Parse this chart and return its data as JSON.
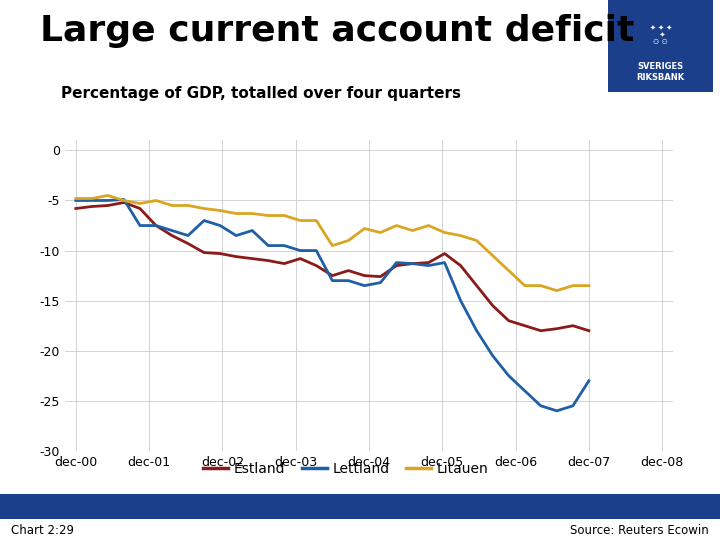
{
  "title": "Large current account deficit",
  "subtitle": "Percentage of GDP, totalled over four quarters",
  "footer_left": "Chart 2:29",
  "footer_right": "Source: Reuters Ecowin",
  "background_color": "#ffffff",
  "plot_bg_color": "#ffffff",
  "grid_color": "#cccccc",
  "ylim": [
    -30,
    1
  ],
  "yticks": [
    0,
    -5,
    -10,
    -15,
    -20,
    -25,
    -30
  ],
  "xtick_labels": [
    "dec-00",
    "dec-01",
    "dec-02",
    "dec-03",
    "dec-04",
    "dec-05",
    "dec-06",
    "dec-07",
    "dec-08"
  ],
  "estland": [
    -5.8,
    -5.6,
    -5.5,
    -5.2,
    -5.8,
    -7.5,
    -8.5,
    -9.3,
    -10.2,
    -10.3,
    -10.6,
    -10.8,
    -11.0,
    -11.3,
    -10.8,
    -11.5,
    -12.5,
    -12.0,
    -12.5,
    -12.6,
    -11.5,
    -11.3,
    -11.2,
    -10.3,
    -11.5,
    -13.5,
    -15.5,
    -17.0,
    -17.5,
    -18.0,
    -17.8,
    -17.5,
    -18.0
  ],
  "lettland": [
    -5.0,
    -5.0,
    -5.0,
    -4.9,
    -7.5,
    -7.5,
    -8.0,
    -8.5,
    -7.0,
    -7.5,
    -8.5,
    -8.0,
    -9.5,
    -9.5,
    -10.0,
    -10.0,
    -13.0,
    -13.0,
    -13.5,
    -13.2,
    -11.2,
    -11.3,
    -11.5,
    -11.2,
    -15.0,
    -18.0,
    -20.5,
    -22.5,
    -24.0,
    -25.5,
    -26.0,
    -25.5,
    -23.0
  ],
  "litauen": [
    -4.8,
    -4.8,
    -4.5,
    -5.0,
    -5.3,
    -5.0,
    -5.5,
    -5.5,
    -5.8,
    -6.0,
    -6.3,
    -6.3,
    -6.5,
    -6.5,
    -7.0,
    -7.0,
    -9.5,
    -9.0,
    -7.8,
    -8.2,
    -7.5,
    -8.0,
    -7.5,
    -8.2,
    -8.5,
    -9.0,
    -10.5,
    -12.0,
    -13.5,
    -13.5,
    -14.0,
    -13.5,
    -13.5
  ],
  "estland_color": "#8B1A1A",
  "lettland_color": "#1F5FA6",
  "litauen_color": "#DAA520",
  "line_width": 2.0,
  "title_fontsize": 26,
  "subtitle_fontsize": 11,
  "tick_fontsize": 9,
  "legend_fontsize": 10,
  "legend_labels": [
    "Estland",
    "Lettland",
    "Litauen"
  ],
  "footer_bar_color": "#1C3F8C",
  "footer_text_color": "#000000",
  "logo_box_color": "#1C3F8C"
}
